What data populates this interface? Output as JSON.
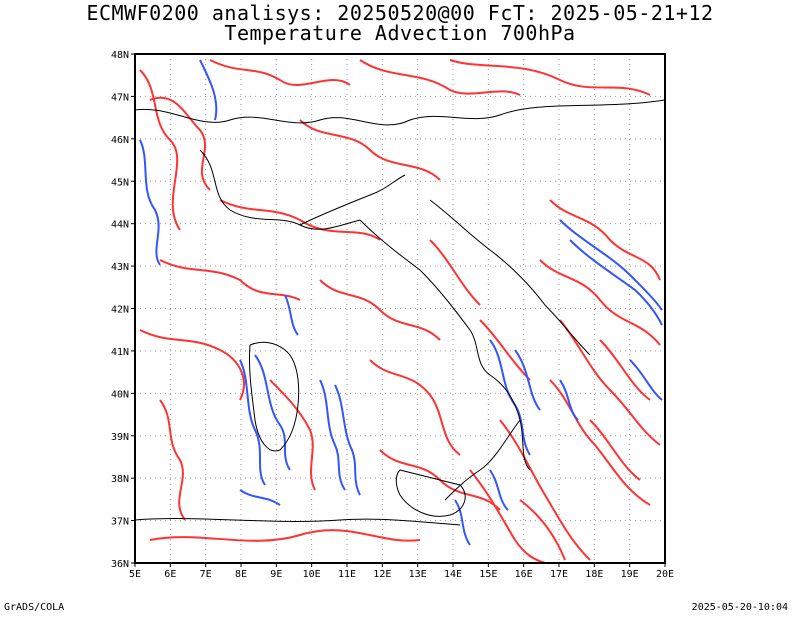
{
  "title": {
    "line1": "ECMWF0200 analisys: 20250520@00 FcT: 2025-05-21+12",
    "line2": "Temperature Advection 700hPa"
  },
  "footer": {
    "left": "GrADS/COLA",
    "right": "2025-05-20-10:04"
  },
  "map": {
    "lon_range": [
      5,
      20
    ],
    "lat_range": [
      36,
      48
    ],
    "lon_ticks": [
      "5E",
      "6E",
      "7E",
      "8E",
      "9E",
      "10E",
      "11E",
      "12E",
      "13E",
      "14E",
      "15E",
      "16E",
      "17E",
      "18E",
      "19E",
      "20E"
    ],
    "lat_ticks": [
      "36N",
      "37N",
      "38N",
      "39N",
      "40N",
      "41N",
      "42N",
      "43N",
      "44N",
      "45N",
      "46N",
      "47N",
      "48N"
    ],
    "grid": "dotted",
    "colors": {
      "warm_advection": "#ff3333",
      "cold_advection": "#3355ff",
      "coastline": "#000000",
      "grid": "#999999"
    }
  }
}
